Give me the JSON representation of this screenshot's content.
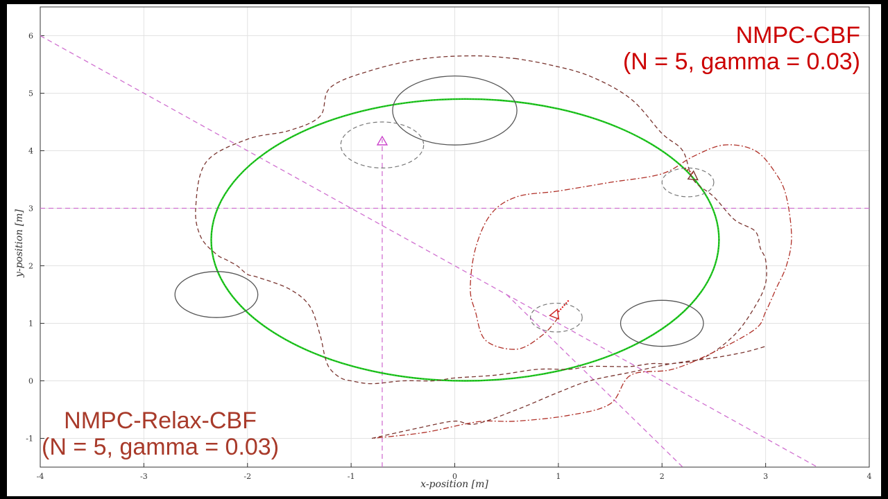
{
  "chart_data": {
    "type": "line",
    "title": "",
    "xlabel": "x-position [m]",
    "ylabel": "y-position [m]",
    "xlim": [
      -4,
      4
    ],
    "ylim": [
      -1.5,
      6.5
    ],
    "xticks": [
      "-4",
      "-3",
      "-2",
      "-1",
      "0",
      "1",
      "2",
      "3",
      "4"
    ],
    "yticks": [
      "-1",
      "0",
      "1",
      "2",
      "3",
      "4",
      "5",
      "6"
    ],
    "grid": true,
    "annotations": [
      {
        "id": "nmpc-cbf",
        "lines": [
          "NMPC-CBF",
          "(N = 5, gamma = 0.03)"
        ],
        "color": "#cc0000",
        "placement": "top-right"
      },
      {
        "id": "nmpc-relax-cbf",
        "lines": [
          "NMPC-Relax-CBF",
          "(N = 5, gamma = 0.03)"
        ],
        "color": "#a83a2a",
        "placement": "bottom-left"
      }
    ],
    "obstacles": [
      {
        "cx": 0,
        "cy": 4.7,
        "rx": 0.6,
        "ry": 0.6
      },
      {
        "cx": -2.3,
        "cy": 1.5,
        "rx": 0.4,
        "ry": 0.4
      },
      {
        "cx": 2.0,
        "cy": 1.0,
        "rx": 0.4,
        "ry": 0.4
      }
    ],
    "safety_circles": [
      {
        "cx": -0.7,
        "cy": 4.1,
        "rx": 0.4,
        "ry": 0.4
      },
      {
        "cx": 2.25,
        "cy": 3.45,
        "rx": 0.25,
        "ry": 0.25
      },
      {
        "cx": 0.98,
        "cy": 1.1,
        "rx": 0.25,
        "ry": 0.25
      }
    ],
    "reference_circle": {
      "cx": 0.1,
      "cy": 2.45,
      "rx": 2.45,
      "ry": 2.45,
      "color": "#22cc22"
    },
    "reference_lines": [
      {
        "points": [
          [
            -4,
            3
          ],
          [
            4,
            3
          ]
        ]
      },
      {
        "points": [
          [
            -0.7,
            -1.5
          ],
          [
            -0.7,
            4.2
          ]
        ]
      },
      {
        "points": [
          [
            -4,
            6
          ],
          [
            3.5,
            -1.5
          ]
        ]
      },
      {
        "points": [
          [
            0.5,
            1.5
          ],
          [
            2.2,
            -1.5
          ]
        ]
      }
    ],
    "series": [
      {
        "style": "dashed",
        "color": "#7a3530",
        "x": [
          0.6,
          0.2,
          -0.3,
          -0.8,
          -1.2,
          -1.3,
          -1.6,
          -2.0,
          -2.4,
          -2.5,
          -2.45,
          -2.3,
          -2.2,
          -2.1,
          -2.0,
          -1.9,
          -1.6,
          -1.4,
          -1.3,
          -1.25,
          -1.2,
          -1.1,
          -1.0,
          -0.8,
          -0.5,
          -0.2,
          0.0,
          0.4,
          0.8,
          1.1,
          1.3,
          1.5,
          1.7,
          1.9,
          2.1,
          2.4,
          2.7,
          2.9,
          3.0,
          3.0,
          2.95,
          2.9,
          2.7,
          2.5,
          2.3,
          2.2,
          2.0,
          1.7,
          1.3,
          0.9,
          0.6
        ],
        "y": [
          5.6,
          5.65,
          5.6,
          5.4,
          5.1,
          4.6,
          4.35,
          4.2,
          3.8,
          3.0,
          2.5,
          2.2,
          2.1,
          2.0,
          1.85,
          1.8,
          1.6,
          1.3,
          0.8,
          0.4,
          0.2,
          0.05,
          0.0,
          -0.05,
          0.0,
          0.0,
          0.05,
          0.1,
          0.2,
          0.2,
          0.25,
          0.25,
          0.25,
          0.3,
          0.3,
          0.4,
          0.8,
          1.3,
          1.7,
          2.1,
          2.3,
          2.6,
          2.8,
          3.2,
          3.5,
          4.0,
          4.3,
          4.9,
          5.3,
          5.5,
          5.6
        ]
      },
      {
        "style": "dashdot",
        "color": "#b03028",
        "x": [
          1.0,
          0.85,
          0.6,
          0.3,
          0.2,
          0.15,
          0.2,
          0.35,
          0.6,
          1.0,
          1.5,
          2.0,
          2.3,
          2.6,
          2.9,
          3.1,
          3.2,
          3.25,
          3.2,
          3.1,
          3.0,
          2.9,
          2.5,
          2.1,
          1.7,
          1.5,
          1.1,
          0.6,
          0.3,
          0.1,
          -0.3,
          -0.8
        ],
        "y": [
          1.1,
          0.8,
          0.55,
          0.7,
          1.2,
          1.6,
          2.3,
          2.9,
          3.2,
          3.3,
          3.45,
          3.6,
          3.9,
          4.1,
          4.0,
          3.6,
          3.2,
          2.5,
          2.0,
          1.6,
          1.2,
          0.9,
          0.5,
          0.2,
          0.1,
          -0.4,
          -0.6,
          -0.7,
          -0.7,
          -0.75,
          -0.9,
          -1.0
        ]
      },
      {
        "style": "dashed",
        "color": "#7a3530",
        "x": [
          -0.8,
          -0.3,
          0.0,
          0.2,
          0.6,
          1.0,
          1.3,
          1.7,
          2.1,
          2.5,
          2.8,
          3.0
        ],
        "y": [
          -1.0,
          -0.8,
          -0.7,
          -0.75,
          -0.5,
          -0.2,
          0.0,
          0.15,
          0.3,
          0.4,
          0.5,
          0.6
        ]
      }
    ]
  }
}
